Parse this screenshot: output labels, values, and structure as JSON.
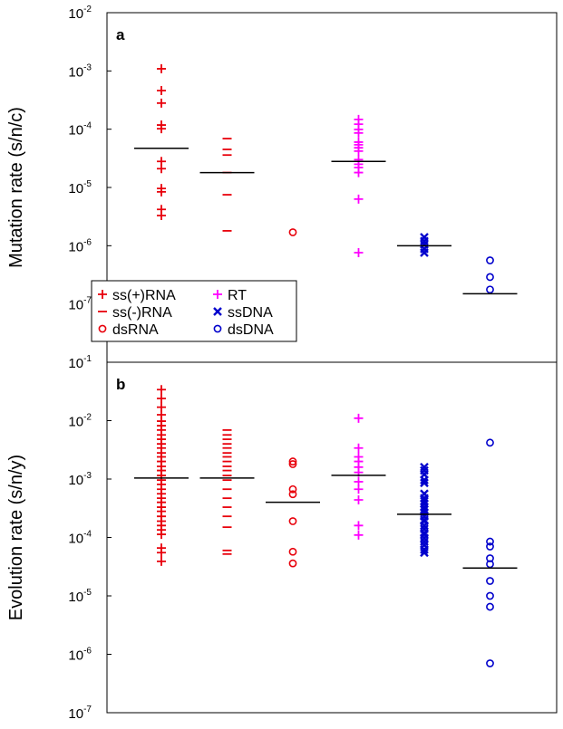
{
  "chart_data": [
    {
      "type": "strip",
      "panel_label": "a",
      "y_label": "Mutation rate (s/n/c)",
      "log_y": true,
      "legend": "lower left",
      "ylim": [
        1e-08,
        0.01
      ],
      "yticks": [
        {
          "value": 0.01,
          "label": "10",
          "exponent": "-2"
        },
        {
          "value": 0.001,
          "label": "10",
          "exponent": "-3"
        },
        {
          "value": 0.0001,
          "label": "10",
          "exponent": "-4"
        },
        {
          "value": 1e-05,
          "label": "10",
          "exponent": "-5"
        },
        {
          "value": 1e-06,
          "label": "10",
          "exponent": "-6"
        },
        {
          "value": 1e-07,
          "label": "10",
          "exponent": "-7"
        }
      ],
      "series": [
        {
          "name": "ss(+)RNA",
          "color": "#e8000b",
          "marker": "plus",
          "median": 4.7e-05,
          "values": [
            0.00109,
            0.00046,
            0.00028,
            0.000118,
            0.000102,
            2.8e-05,
            2.1e-05,
            9.6e-06,
            8.4e-06,
            4.2e-06,
            3.3e-06
          ]
        },
        {
          "name": "ss(-)RNA",
          "color": "#e8000b",
          "marker": "dash",
          "median": 1.8e-05,
          "values": [
            6.9e-05,
            4.5e-05,
            3.6e-05,
            1.8e-05,
            7.5e-06,
            1.8e-06
          ]
        },
        {
          "name": "dsRNA",
          "color": "#e8000b",
          "marker": "circle",
          "values": [
            1.7e-06
          ]
        },
        {
          "name": "RT",
          "color": "#ff00ff",
          "marker": "plus",
          "median": 2.8e-05,
          "values": [
            0.000147,
            0.000122,
            9.9e-05,
            8.6e-05,
            6e-05,
            5.4e-05,
            4.8e-05,
            4.2e-05,
            3e-05,
            2.5e-05,
            2.2e-05,
            1.8e-05,
            6.3e-06,
            7.6e-07
          ]
        },
        {
          "name": "ssDNA",
          "color": "#0000cc",
          "marker": "cross",
          "median": 1e-06,
          "values": [
            1.4e-06,
            1.2e-06,
            1.05e-06,
            8.8e-07,
            7.6e-07
          ]
        },
        {
          "name": "dsDNA",
          "color": "#0000cc",
          "marker": "circle",
          "median": 1.5e-07,
          "values": [
            5.6e-07,
            2.9e-07,
            1.77e-07
          ]
        }
      ]
    },
    {
      "type": "strip",
      "panel_label": "b",
      "y_label": "Evolution rate (s/n/y)",
      "log_y": true,
      "ylim": [
        1e-07,
        0.1
      ],
      "yticks": [
        {
          "value": 0.1,
          "label": "10",
          "exponent": "-1"
        },
        {
          "value": 0.01,
          "label": "10",
          "exponent": "-2"
        },
        {
          "value": 0.001,
          "label": "10",
          "exponent": "-3"
        },
        {
          "value": 0.0001,
          "label": "10",
          "exponent": "-4"
        },
        {
          "value": 1e-05,
          "label": "10",
          "exponent": "-5"
        },
        {
          "value": 1e-06,
          "label": "10",
          "exponent": "-6"
        },
        {
          "value": 1e-07,
          "label": "10",
          "exponent": "-7"
        }
      ],
      "series": [
        {
          "color": "#e8000b",
          "marker": "plus",
          "median": 0.00104,
          "values": [
            0.034,
            0.024,
            0.017,
            0.0126,
            0.0098,
            0.0082,
            0.0069,
            0.0057,
            0.0048,
            0.004,
            0.0034,
            0.0028,
            0.0024,
            0.002,
            0.00165,
            0.0014,
            0.00115,
            0.00096,
            0.00081,
            0.00067,
            0.00056,
            0.00047,
            0.0004,
            0.00033,
            0.00028,
            0.00023,
            0.00019,
            0.00016,
            0.000135,
            0.000113,
            6.6e-05,
            5.5e-05,
            3.9e-05
          ]
        },
        {
          "color": "#e8000b",
          "marker": "dash",
          "median": 0.00104,
          "values": [
            0.0069,
            0.0057,
            0.0048,
            0.004,
            0.0034,
            0.0028,
            0.0024,
            0.002,
            0.00165,
            0.0014,
            0.00115,
            0.00096,
            0.00067,
            0.00047,
            0.00033,
            0.00023,
            0.00015,
            6e-05,
            5.2e-05
          ]
        },
        {
          "color": "#e8000b",
          "marker": "circle",
          "median": 0.0004,
          "values": [
            0.002,
            0.0018,
            0.00067,
            0.00055,
            0.00019,
            5.7e-05,
            3.6e-05
          ]
        },
        {
          "color": "#ff00ff",
          "marker": "plus",
          "median": 0.00116,
          "values": [
            0.011,
            0.0034,
            0.0024,
            0.002,
            0.0016,
            0.0013,
            0.0009,
            0.00067,
            0.00044,
            0.00016,
            0.00011
          ]
        },
        {
          "color": "#0000cc",
          "marker": "cross",
          "median": 0.00025,
          "values": [
            0.0016,
            0.0014,
            0.0012,
            0.00096,
            0.00086,
            0.00056,
            0.00047,
            0.00042,
            0.00038,
            0.00033,
            0.0003,
            0.00027,
            0.00023,
            0.0002,
            0.00019,
            0.00016,
            0.00014,
            0.00012,
            0.000113,
            9.8e-05,
            8.5e-05,
            7.4e-05,
            6.2e-05,
            5.5e-05
          ]
        },
        {
          "color": "#0000cc",
          "marker": "circle",
          "median": 3e-05,
          "values": [
            0.0042,
            8.5e-05,
            7e-05,
            4.4e-05,
            3.5e-05,
            1.8e-05,
            1e-05,
            6.5e-06,
            7e-07
          ]
        }
      ]
    }
  ]
}
